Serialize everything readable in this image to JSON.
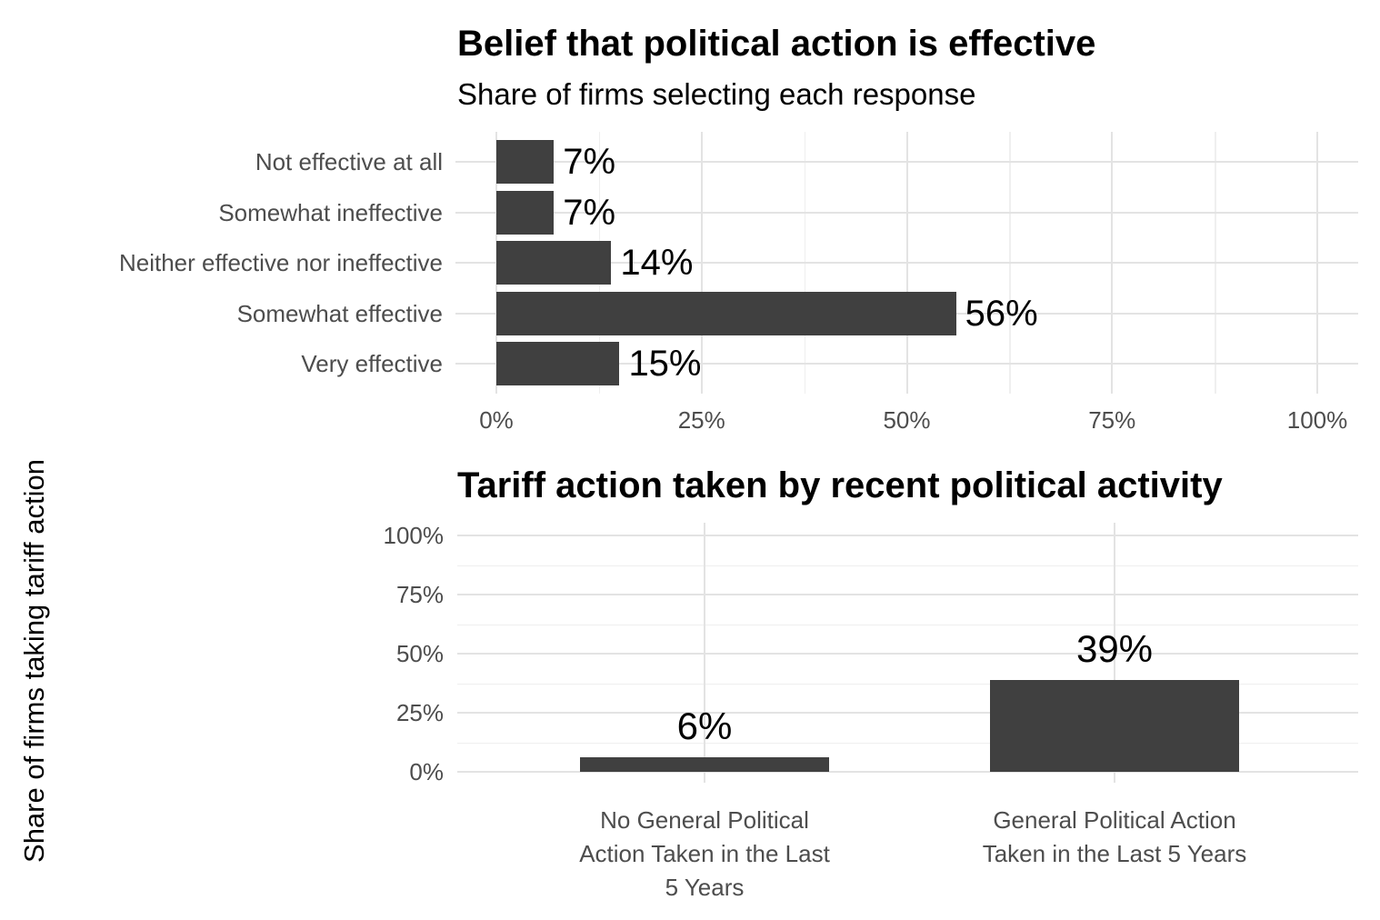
{
  "colors": {
    "bar": "#404040",
    "axis_text": "#4d4d4d",
    "grid_major": "#e3e3e3",
    "grid_minor": "#efefef",
    "text": "#000000",
    "background": "#ffffff"
  },
  "chart_data": [
    {
      "type": "bar",
      "orientation": "horizontal",
      "title": "Belief that political action is effective",
      "subtitle": "Share of firms selecting each response",
      "categories": [
        "Not effective at all",
        "Somewhat ineffective",
        "Neither effective nor ineffective",
        "Somewhat effective",
        "Very effective"
      ],
      "values": [
        7,
        7,
        14,
        56,
        15
      ],
      "value_labels": [
        "7%",
        "7%",
        "14%",
        "56%",
        "15%"
      ],
      "x_ticks": [
        "0%",
        "25%",
        "50%",
        "75%",
        "100%"
      ],
      "x_tick_values": [
        0,
        25,
        50,
        75,
        100
      ],
      "x_minor_tick_values": [
        12.5,
        37.5,
        62.5,
        87.5
      ],
      "xlim": [
        0,
        100
      ],
      "grid": "on",
      "legend": "none"
    },
    {
      "type": "bar",
      "orientation": "vertical",
      "title": "Tariff action taken by recent political activity",
      "ylabel": "Share of firms taking tariff action",
      "categories": [
        [
          "No General Political",
          "Action Taken in the Last",
          "5 Years"
        ],
        [
          "General Political Action",
          "Taken in the Last 5 Years"
        ]
      ],
      "values": [
        6,
        39
      ],
      "value_labels": [
        "6%",
        "39%"
      ],
      "y_ticks": [
        "0%",
        "25%",
        "50%",
        "75%",
        "100%"
      ],
      "y_tick_values": [
        0,
        25,
        50,
        75,
        100
      ],
      "y_minor_tick_values": [
        12.5,
        37.5,
        62.5,
        87.5
      ],
      "ylim": [
        0,
        100
      ],
      "grid": "on",
      "legend": "none"
    }
  ]
}
